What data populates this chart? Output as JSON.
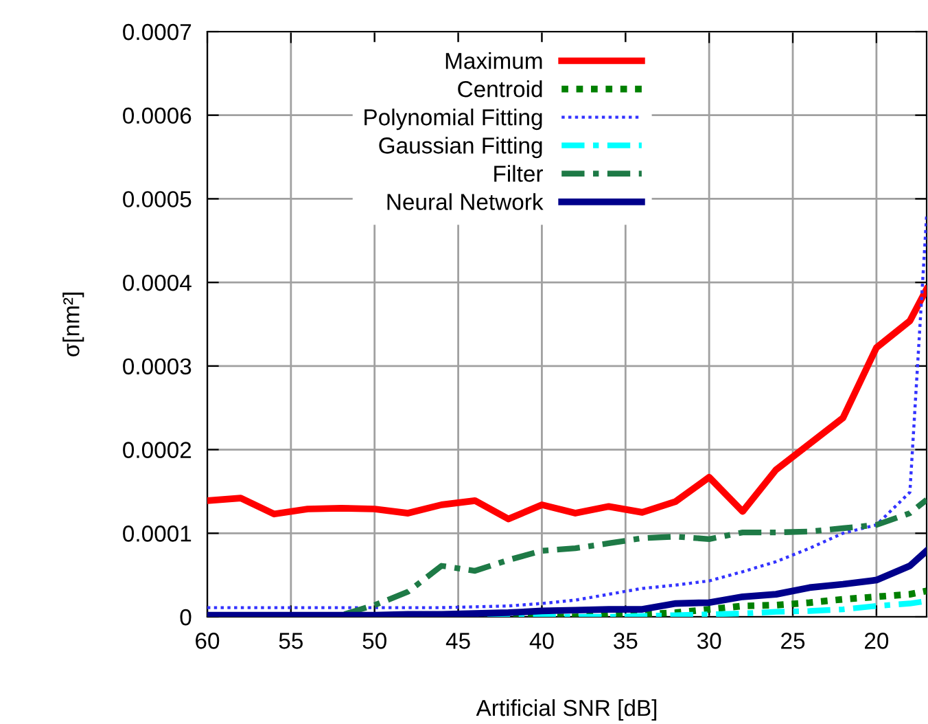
{
  "chart_data": {
    "type": "line",
    "xlabel": "Artificial SNR [dB]",
    "ylabel": "σ[nm²]",
    "x": [
      60,
      58,
      56,
      54,
      52,
      50,
      48,
      46,
      44,
      42,
      40,
      38,
      36,
      34,
      32,
      30,
      28,
      26,
      24,
      22,
      20,
      18,
      17
    ],
    "xlim": [
      60,
      17
    ],
    "xticks": [
      60,
      55,
      50,
      45,
      40,
      35,
      30,
      25,
      20
    ],
    "ylim": [
      0,
      0.0007
    ],
    "yticks": [
      0,
      0.0001,
      0.0002,
      0.0003,
      0.0004,
      0.0005,
      0.0006,
      0.0007
    ],
    "grid": true,
    "legend": "top",
    "marker": "none",
    "series": [
      {
        "name": "Maximum",
        "color": "#ff0000",
        "line_style": "solid",
        "values": [
          0.000139,
          0.000142,
          0.000123,
          0.000129,
          0.00013,
          0.000129,
          0.000124,
          0.000134,
          0.000139,
          0.000117,
          0.000134,
          0.000124,
          0.000132,
          0.000125,
          0.000138,
          0.000167,
          0.000126,
          0.000176,
          0.000207,
          0.000238,
          0.000322,
          0.000354,
          0.000392
        ]
      },
      {
        "name": "Centroid",
        "color": "#008000",
        "line_style": "dotted",
        "values": [
          null,
          null,
          null,
          0,
          0,
          0,
          0,
          0,
          0,
          0,
          0,
          0,
          2e-06,
          3e-06,
          5e-06,
          9e-06,
          1.3e-05,
          1.4e-05,
          1.7e-05,
          2.1e-05,
          2.4e-05,
          2.7e-05,
          3.1e-05
        ]
      },
      {
        "name": "Polynomial Fitting",
        "color": "#3333ff",
        "line_style": "dotted",
        "values": [
          1.1e-05,
          1.1e-05,
          1.1e-05,
          1.1e-05,
          1.1e-05,
          1.1e-05,
          1.1e-05,
          1.1e-05,
          1.2e-05,
          1.3e-05,
          1.6e-05,
          2e-05,
          2.7e-05,
          3.4e-05,
          3.8e-05,
          4.3e-05,
          5.4e-05,
          6.6e-05,
          8.2e-05,
          0.0001,
          0.00011,
          0.000149,
          0.00048
        ]
      },
      {
        "name": "Gaussian Fitting",
        "color": "#00ffff",
        "line_style": "dashed",
        "values": [
          null,
          null,
          null,
          null,
          null,
          null,
          null,
          0,
          0,
          0,
          0,
          0,
          0,
          1e-06,
          2e-06,
          3e-06,
          4e-06,
          6e-06,
          7e-06,
          9e-06,
          1.3e-05,
          1.6e-05,
          1.9e-05
        ]
      },
      {
        "name": "Filter",
        "color": "#1e7a46",
        "line_style": "dashed",
        "values": [
          0,
          0,
          0,
          0,
          2e-06,
          1.4e-05,
          3e-05,
          6.1e-05,
          5.5e-05,
          6.8e-05,
          7.9e-05,
          8.2e-05,
          8.8e-05,
          9.4e-05,
          9.6e-05,
          9.3e-05,
          0.000101,
          0.000101,
          0.000102,
          0.000106,
          0.00011,
          0.000124,
          0.00014
        ]
      },
      {
        "name": "Neural Network",
        "color": "#00008b",
        "line_style": "solid",
        "values": [
          2e-06,
          2e-06,
          2e-06,
          2e-06,
          2e-06,
          2e-06,
          3e-06,
          3e-06,
          4e-06,
          5e-06,
          7e-06,
          8e-06,
          9e-06,
          9e-06,
          1.6e-05,
          1.7e-05,
          2.4e-05,
          2.7e-05,
          3.5e-05,
          3.9e-05,
          4.4e-05,
          6.1e-05,
          7.9e-05
        ]
      }
    ]
  }
}
